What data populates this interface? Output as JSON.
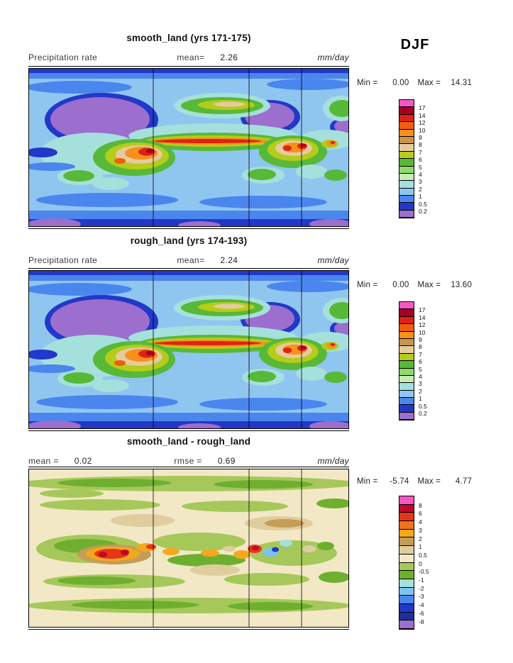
{
  "season_label": "DJF",
  "panels": [
    {
      "title": "smooth_land (yrs 171-175)",
      "variable_label": "Precipitation rate",
      "mean_label": "mean=",
      "mean_value": "2.26",
      "units": "mm/day",
      "min_label": "Min =",
      "min_value": "0.00",
      "max_label": "Max =",
      "max_value": "14.31",
      "colorbar_labels": [
        "17",
        "14",
        "12",
        "10",
        "9",
        "8",
        "7",
        "6",
        "5",
        "4",
        "3",
        "2",
        "1",
        "0.5",
        "0.2"
      ],
      "colorbar_colors": [
        "#F558C0",
        "#A50021",
        "#DE2314",
        "#EF5C10",
        "#F8901A",
        "#C7954F",
        "#E5CB9E",
        "#B4CC1A",
        "#58B838",
        "#8ED96E",
        "#C6EBB4",
        "#A5E0DC",
        "#8FC6F0",
        "#4A86EE",
        "#2238C8",
        "#9C6ECE"
      ]
    },
    {
      "title": "rough_land (yrs 174-193)",
      "variable_label": "Precipitation rate",
      "mean_label": "mean=",
      "mean_value": "2.24",
      "units": "mm/day",
      "min_label": "Min =",
      "min_value": "0.00",
      "max_label": "Max =",
      "max_value": "13.60",
      "colorbar_labels": [
        "17",
        "14",
        "12",
        "10",
        "9",
        "8",
        "7",
        "6",
        "5",
        "4",
        "3",
        "2",
        "1",
        "0.5",
        "0.2"
      ],
      "colorbar_colors": [
        "#F558C0",
        "#A50021",
        "#DE2314",
        "#EF5C10",
        "#F8901A",
        "#C7954F",
        "#E5CB9E",
        "#B4CC1A",
        "#58B838",
        "#8ED96E",
        "#C6EBB4",
        "#A5E0DC",
        "#8FC6F0",
        "#4A86EE",
        "#2238C8",
        "#9C6ECE"
      ]
    },
    {
      "title": "smooth_land - rough_land",
      "mean_label": "mean =",
      "mean_value": "0.02",
      "rmse_label": "rmse =",
      "rmse_value": "0.69",
      "units": "mm/day",
      "min_label": "Min =",
      "min_value": "-5.74",
      "max_label": "Max =",
      "max_value": "4.77",
      "colorbar_labels": [
        "8",
        "6",
        "4",
        "3",
        "2",
        "1",
        "0.5",
        "0",
        "-0.5",
        "-1",
        "-2",
        "-3",
        "-4",
        "-6",
        "-8"
      ],
      "colorbar_colors": [
        "#F558C0",
        "#C00A28",
        "#E83418",
        "#F2711C",
        "#F4A81B",
        "#C49D58",
        "#E0CD9E",
        "#F2E8C6",
        "#A6C85A",
        "#6FAF30",
        "#A5E0DC",
        "#7CC4F0",
        "#4A86EE",
        "#2238C8",
        "#1F2F9C",
        "#9C6ECE"
      ]
    }
  ],
  "chart_data": [
    {
      "type": "heatmap",
      "panel": "top",
      "title": "smooth_land (yrs 171-175)",
      "variable": "Precipitation rate",
      "units": "mm/day",
      "season": "DJF",
      "stats": {
        "mean": 2.26,
        "min": 0.0,
        "max": 14.31
      },
      "contour_levels": [
        0.2,
        0.5,
        1,
        2,
        3,
        4,
        5,
        6,
        7,
        8,
        9,
        10,
        12,
        14,
        17
      ],
      "projection": "global lat-lon filled contours",
      "legend_position": "right"
    },
    {
      "type": "heatmap",
      "panel": "middle",
      "title": "rough_land (yrs 174-193)",
      "variable": "Precipitation rate",
      "units": "mm/day",
      "season": "DJF",
      "stats": {
        "mean": 2.24,
        "min": 0.0,
        "max": 13.6
      },
      "contour_levels": [
        0.2,
        0.5,
        1,
        2,
        3,
        4,
        5,
        6,
        7,
        8,
        9,
        10,
        12,
        14,
        17
      ],
      "projection": "global lat-lon filled contours",
      "legend_position": "right"
    },
    {
      "type": "heatmap",
      "panel": "bottom",
      "title": "smooth_land - rough_land",
      "units": "mm/day",
      "season": "DJF",
      "stats": {
        "mean": 0.02,
        "rmse": 0.69,
        "min": -5.74,
        "max": 4.77
      },
      "contour_levels": [
        -8,
        -6,
        -4,
        -3,
        -2,
        -1,
        -0.5,
        0,
        0.5,
        1,
        2,
        3,
        4,
        6,
        8
      ],
      "projection": "global lat-lon filled contours",
      "legend_position": "right"
    }
  ]
}
